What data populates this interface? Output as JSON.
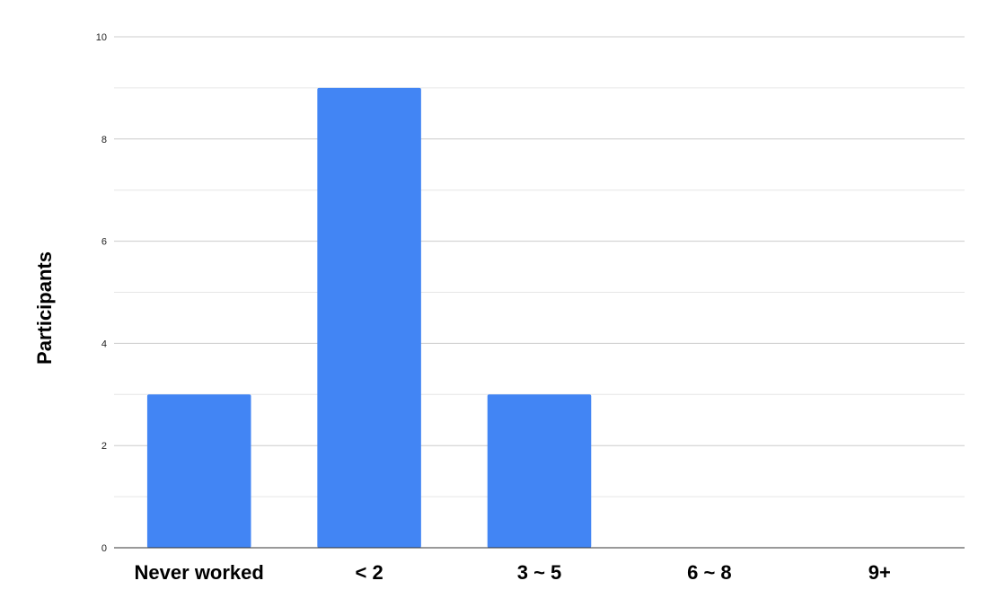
{
  "chart_data": {
    "type": "bar",
    "categories": [
      "Never worked",
      "< 2",
      "3 ~ 5",
      "6 ~ 8",
      "9+"
    ],
    "values": [
      3,
      9,
      3,
      0,
      0
    ],
    "title": "",
    "xlabel": "",
    "ylabel": "Participants",
    "ylim": [
      0,
      10
    ],
    "y_ticks": [
      "0",
      "2",
      "4",
      "6",
      "8",
      "10"
    ],
    "grid": true,
    "legend": "none",
    "bar_color": "#4285f4"
  }
}
